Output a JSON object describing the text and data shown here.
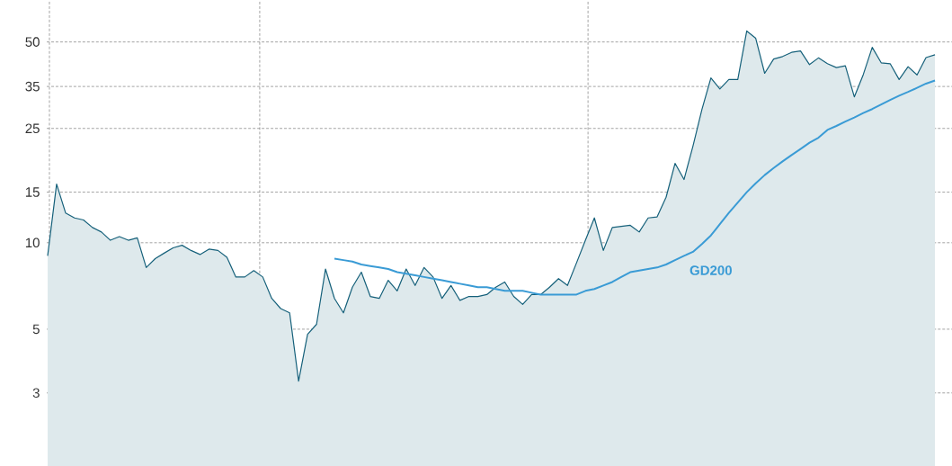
{
  "chart_data": {
    "type": "line",
    "log": "y",
    "grid": true,
    "tick_labels": "y",
    "ylim": [
      1.67,
      70
    ],
    "yticks": [
      3,
      5,
      10,
      15,
      25,
      35,
      50
    ],
    "categories": [
      null,
      null,
      null,
      null,
      null,
      null,
      null,
      null,
      null,
      null,
      null,
      null,
      null,
      null,
      null,
      null,
      null,
      null,
      null,
      null,
      null,
      null,
      null,
      null,
      null,
      null,
      null,
      null,
      null,
      null,
      null,
      null,
      null,
      null,
      null,
      null,
      null,
      null,
      null,
      null,
      null,
      null,
      null,
      null,
      null,
      null,
      null,
      null,
      null,
      null,
      null,
      null,
      null,
      null,
      null,
      null,
      null,
      null,
      null,
      null,
      null,
      null,
      null,
      null,
      null,
      null,
      null,
      null,
      null,
      null,
      null,
      null,
      null,
      null,
      null,
      null,
      null,
      null,
      null,
      null,
      null,
      null,
      null,
      null,
      null,
      null,
      null,
      null,
      null,
      null,
      null,
      null,
      null,
      null,
      null,
      null,
      null,
      null,
      null,
      null
    ],
    "series": [
      {
        "type": "area",
        "color": "#15607a",
        "values": [
          9.0,
          16.0,
          12.7,
          12.2,
          12.0,
          11.3,
          10.9,
          10.2,
          10.5,
          10.2,
          10.4,
          8.2,
          8.8,
          9.2,
          9.6,
          9.8,
          9.4,
          9.1,
          9.5,
          9.4,
          8.9,
          7.6,
          7.6,
          8.0,
          7.6,
          6.4,
          5.9,
          5.7,
          3.3,
          4.8,
          5.2,
          8.1,
          6.4,
          5.7,
          7.0,
          7.9,
          6.5,
          6.4,
          7.4,
          6.8,
          8.1,
          7.1,
          8.2,
          7.6,
          6.4,
          7.1,
          6.3,
          6.5,
          6.5,
          6.6,
          7.0,
          7.3,
          6.5,
          6.1,
          6.6,
          6.6,
          7.0,
          7.5,
          7.1,
          8.5,
          10.2,
          12.2,
          9.4,
          11.3,
          11.4,
          11.5,
          10.9,
          12.2,
          12.3,
          14.4,
          18.9,
          16.6,
          21.7,
          29.1,
          37.5,
          34.3,
          37.0,
          37.0,
          54.6,
          51.5,
          38.9,
          43.6,
          44.5,
          46.0,
          46.5,
          41.7,
          44.0,
          42.0,
          40.7,
          41.3,
          32.2,
          38.5,
          47.9,
          42.3,
          42.0,
          37.0,
          41.0,
          38.4,
          44.1,
          45.1
        ]
      },
      {
        "type": "line",
        "name": "GD200",
        "color": "#3a9bd5",
        "values": [
          null,
          null,
          null,
          null,
          null,
          null,
          null,
          null,
          null,
          null,
          null,
          null,
          null,
          null,
          null,
          null,
          null,
          null,
          null,
          null,
          null,
          null,
          null,
          null,
          null,
          null,
          null,
          null,
          null,
          null,
          null,
          null,
          8.8,
          8.7,
          8.6,
          8.4,
          8.3,
          8.2,
          8.1,
          7.9,
          7.8,
          7.7,
          7.6,
          7.5,
          7.4,
          7.3,
          7.2,
          7.1,
          7.0,
          7.0,
          6.9,
          6.8,
          6.8,
          6.8,
          6.7,
          6.6,
          6.6,
          6.6,
          6.6,
          6.6,
          6.8,
          6.9,
          7.1,
          7.3,
          7.6,
          7.9,
          8.0,
          8.1,
          8.2,
          8.4,
          8.7,
          9.0,
          9.3,
          9.9,
          10.6,
          11.6,
          12.7,
          13.8,
          15.0,
          16.1,
          17.2,
          18.2,
          19.2,
          20.2,
          21.2,
          22.3,
          23.2,
          24.7,
          25.5,
          26.4,
          27.3,
          28.3,
          29.2,
          30.3,
          31.4,
          32.5,
          33.5,
          34.6,
          35.8,
          36.7
        ]
      }
    ]
  }
}
